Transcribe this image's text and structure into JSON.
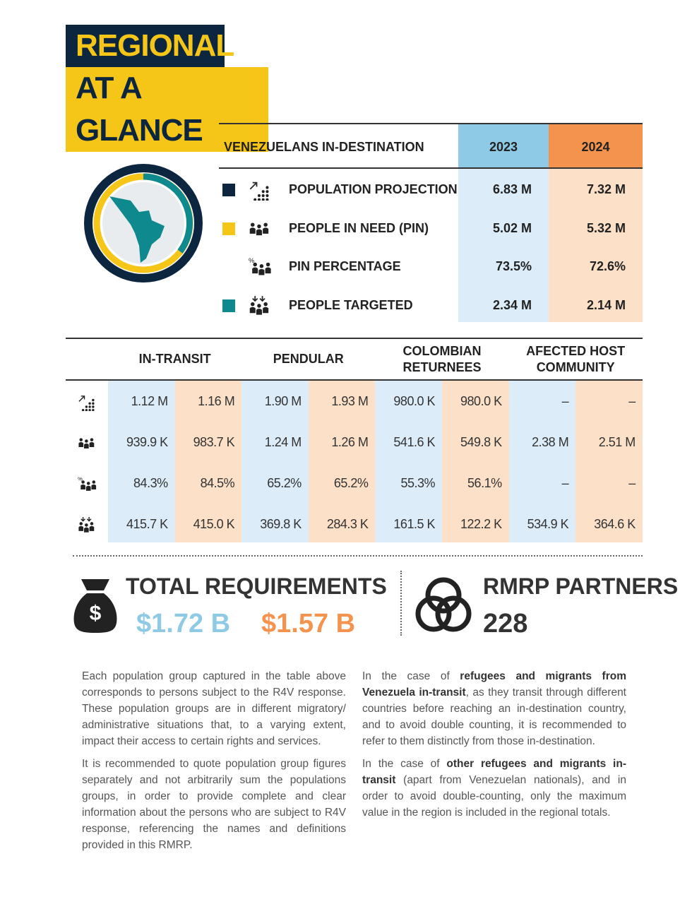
{
  "header": {
    "title_line1": "REGIONAL",
    "title_line2": "AT A GLANCE"
  },
  "destination_table": {
    "header": "VENEZUELANS IN-DESTINATION",
    "years": [
      "2023",
      "2024"
    ],
    "rows": [
      {
        "label": "POPULATION PROJECTION",
        "values": [
          "6.83 M",
          "7.32 M"
        ]
      },
      {
        "label": "PEOPLE IN NEED (PIN)",
        "values": [
          "5.02 M",
          "5.32 M"
        ]
      },
      {
        "label": "PIN PERCENTAGE",
        "values": [
          "73.5%",
          "72.6%"
        ]
      },
      {
        "label": "PEOPLE TARGETED",
        "values": [
          "2.34 M",
          "2.14 M"
        ]
      }
    ]
  },
  "groups_table": {
    "columns": [
      "IN-TRANSIT",
      "PENDULAR",
      "COLOMBIAN RETURNEES",
      "AFECTED HOST COMMUNITY"
    ],
    "rows": [
      [
        "1.12 M",
        "1.16 M",
        "1.90 M",
        "1.93 M",
        "980.0 K",
        "980.0 K",
        "–",
        "–"
      ],
      [
        "939.9 K",
        "983.7 K",
        "1.24 M",
        "1.26 M",
        "541.6 K",
        "549.8 K",
        "2.38 M",
        "2.51 M"
      ],
      [
        "84.3%",
        "84.5%",
        "65.2%",
        "65.2%",
        "55.3%",
        "56.1%",
        "–",
        "–"
      ],
      [
        "415.7 K",
        "415.0 K",
        "369.8 K",
        "284.3 K",
        "161.5 K",
        "122.2 K",
        "534.9 K",
        "364.6 K"
      ]
    ]
  },
  "requirements": {
    "title": "TOTAL REQUIREMENTS",
    "values": [
      "$1.72 B",
      "$1.57 B"
    ]
  },
  "partners": {
    "title": "RMRP PARTNERS",
    "value": "228"
  },
  "text": {
    "left": [
      [
        {
          "text": "Each population group captured in the table above corresponds to persons subject to the R4V response. These population groups are in different migratory/ administrative situations that, to a varying extent, impact their access to certain rights and services."
        }
      ],
      [
        {
          "text": "It is recommended to quote population group figures separately and not arbitrarily sum the populations groups, in order to provide complete and clear information about the persons who are subject to R4V response, referencing the names and definitions provided in this RMRP."
        }
      ]
    ],
    "right": [
      [
        {
          "text": "In the case of "
        },
        {
          "text": "refugees and migrants from Venezuela in-transit",
          "bold": true
        },
        {
          "text": ", as they transit through different countries before reaching an in-destination country, and to avoid double counting, it is recommended to refer to them distinctly from those in-destination."
        }
      ],
      [
        {
          "text": "In the case of "
        },
        {
          "text": "other refugees and migrants in-transit",
          "bold": true
        },
        {
          "text": " (apart from Venezuelan nationals), and in order to avoid double-counting, only the maximum value in the region is included in the regional totals."
        }
      ]
    ]
  }
}
